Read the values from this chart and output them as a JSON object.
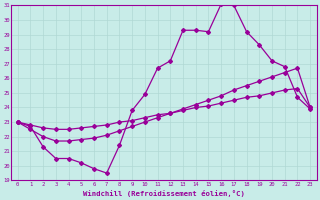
{
  "xlabel": "Windchill (Refroidissement éolien,°C)",
  "xlim": [
    -0.5,
    23.5
  ],
  "ylim": [
    19,
    31
  ],
  "yticks": [
    19,
    20,
    21,
    22,
    23,
    24,
    25,
    26,
    27,
    28,
    29,
    30,
    31
  ],
  "xticks": [
    0,
    1,
    2,
    3,
    4,
    5,
    6,
    7,
    8,
    9,
    10,
    11,
    12,
    13,
    14,
    15,
    16,
    17,
    18,
    19,
    20,
    21,
    22,
    23
  ],
  "bg_color": "#c8ece8",
  "line_color": "#990099",
  "grid_color": "#b0d8d4",
  "line1_y": [
    23.0,
    22.7,
    21.3,
    20.5,
    20.5,
    20.2,
    19.8,
    19.5,
    21.4,
    23.8,
    24.9,
    26.7,
    27.2,
    29.3,
    29.3,
    29.2,
    31.1,
    31.0,
    29.2,
    28.3,
    27.2,
    26.8,
    24.7,
    23.9
  ],
  "line2_y": [
    23.0,
    22.5,
    22.0,
    21.7,
    21.7,
    21.8,
    21.9,
    22.1,
    22.4,
    22.7,
    23.0,
    23.3,
    23.6,
    23.9,
    24.2,
    24.5,
    24.8,
    25.2,
    25.5,
    25.8,
    26.1,
    26.4,
    26.7,
    24.0
  ],
  "line3_y": [
    23.0,
    22.8,
    22.6,
    22.5,
    22.5,
    22.6,
    22.7,
    22.8,
    23.0,
    23.1,
    23.3,
    23.5,
    23.6,
    23.8,
    24.0,
    24.1,
    24.3,
    24.5,
    24.7,
    24.8,
    25.0,
    25.2,
    25.3,
    24.0
  ]
}
